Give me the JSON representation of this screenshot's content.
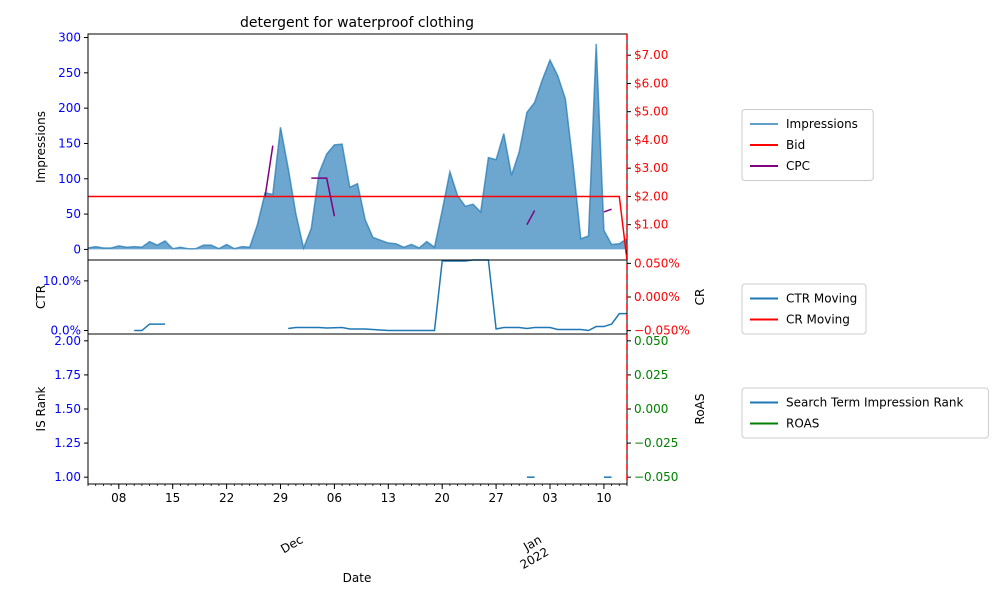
{
  "chart_data": {
    "type": "line",
    "title": "detergent for waterproof clothing",
    "xlabel": "Date",
    "x_start": "2021-11-04",
    "x_end": "2022-01-13",
    "x_ticks": [
      {
        "date": "2021-11-08",
        "label": "08"
      },
      {
        "date": "2021-11-15",
        "label": "15"
      },
      {
        "date": "2021-11-22",
        "label": "22"
      },
      {
        "date": "2021-11-29",
        "label": "29"
      },
      {
        "date": "2021-12-06",
        "label": "06"
      },
      {
        "date": "2021-12-13",
        "label": "13"
      },
      {
        "date": "2021-12-20",
        "label": "20"
      },
      {
        "date": "2021-12-27",
        "label": "27"
      },
      {
        "date": "2022-01-03",
        "label": "03"
      },
      {
        "date": "2022-01-10",
        "label": "10"
      }
    ],
    "x_month_labels": [
      {
        "date": "2021-12-01",
        "lines": [
          "Dec"
        ]
      },
      {
        "date": "2022-01-01",
        "lines": [
          "Jan",
          "2022"
        ]
      }
    ],
    "panels": [
      {
        "id": "impressions",
        "ylabel": "Impressions",
        "ylim": [
          -15,
          305
        ],
        "yticks": [
          0,
          50,
          100,
          150,
          200,
          250,
          300
        ],
        "ytick_labels": [
          "0",
          "50",
          "100",
          "150",
          "200",
          "250",
          "300"
        ],
        "right_ylim": [
          -0.25,
          7.75
        ],
        "right_yticks": [
          1,
          2,
          3,
          4,
          5,
          6,
          7
        ],
        "right_ytick_labels": [
          "$1.00",
          "$2.00",
          "$3.00",
          "$4.00",
          "$5.00",
          "$6.00",
          "$7.00"
        ],
        "legend": [
          "Impressions",
          "Bid",
          "CPC"
        ],
        "series": [
          {
            "name": "Impressions",
            "axis": "left",
            "style": "area",
            "color": "#1f77b4",
            "start": "2021-11-04",
            "values": [
              2,
              4,
              2,
              2,
              5,
              3,
              4,
              3,
              11,
              6,
              12,
              1,
              3,
              1,
              1,
              6,
              6,
              1,
              7,
              1,
              4,
              3,
              35,
              80,
              78,
              173,
              115,
              50,
              2,
              30,
              108,
              135,
              148,
              149,
              88,
              93,
              42,
              17,
              13,
              9,
              8,
              3,
              7,
              2,
              11,
              3,
              55,
              110,
              76,
              61,
              64,
              53,
              130,
              127,
              164,
              105,
              138,
              194,
              208,
              240,
              268,
              246,
              213,
              120,
              15,
              19,
              291,
              27,
              7,
              8,
              15
            ]
          },
          {
            "name": "Bid",
            "axis": "right",
            "color": "#ff0000",
            "points": [
              [
                "2021-11-04",
                2.0
              ],
              [
                "2022-01-12",
                2.0
              ],
              [
                "2022-01-13",
                -0.25
              ]
            ]
          },
          {
            "name": "CPC",
            "axis": "right",
            "color": "#800080",
            "segments": [
              [
                [
                  "2021-11-27",
                  2.0
                ],
                [
                  "2021-11-28",
                  3.8
                ]
              ],
              [
                [
                  "2021-12-03",
                  2.65
                ],
                [
                  "2021-12-05",
                  2.65
                ],
                [
                  "2021-12-06",
                  1.3
                ]
              ],
              [
                [
                  "2021-12-31",
                  1.0
                ],
                [
                  "2022-01-01",
                  1.5
                ]
              ],
              [
                [
                  "2022-01-10",
                  1.45
                ],
                [
                  "2022-01-11",
                  1.55
                ]
              ]
            ]
          }
        ]
      },
      {
        "id": "ctr",
        "ylabel": "CTR",
        "ylim": [
          -0.7,
          14.2
        ],
        "yticks": [
          0,
          10
        ],
        "ytick_labels": [
          "0.0%",
          "10.0%"
        ],
        "right_ylabel": "CR",
        "right_ylim": [
          -0.055,
          0.055
        ],
        "right_yticks": [
          -0.05,
          0.0,
          0.05
        ],
        "right_ytick_labels": [
          "−0.050%",
          "0.000%",
          "0.050%"
        ],
        "legend": [
          "CTR Moving",
          "CR Moving"
        ],
        "series": [
          {
            "name": "CTR Moving",
            "axis": "left",
            "color": "#1f77b4",
            "segments": [
              [
                [
                  "2021-11-10",
                  0.0
                ],
                [
                  "2021-11-11",
                  0.0
                ],
                [
                  "2021-11-12",
                  1.3
                ],
                [
                  "2021-11-14",
                  1.3
                ]
              ],
              [
                [
                  "2021-11-30",
                  0.4
                ],
                [
                  "2021-12-01",
                  0.6
                ],
                [
                  "2021-12-04",
                  0.6
                ],
                [
                  "2021-12-05",
                  0.5
                ],
                [
                  "2021-12-07",
                  0.6
                ],
                [
                  "2021-12-08",
                  0.3
                ],
                [
                  "2021-12-10",
                  0.3
                ],
                [
                  "2021-12-13",
                  0.0
                ],
                [
                  "2021-12-19",
                  0.0
                ],
                [
                  "2021-12-20",
                  14.0
                ],
                [
                  "2021-12-23",
                  14.0
                ],
                [
                  "2021-12-24",
                  14.2
                ],
                [
                  "2021-12-26",
                  14.2
                ],
                [
                  "2021-12-27",
                  0.3
                ],
                [
                  "2021-12-28",
                  0.6
                ],
                [
                  "2021-12-30",
                  0.6
                ],
                [
                  "2021-12-31",
                  0.4
                ],
                [
                  "2022-01-01",
                  0.6
                ],
                [
                  "2022-01-03",
                  0.6
                ],
                [
                  "2022-01-04",
                  0.2
                ],
                [
                  "2022-01-07",
                  0.2
                ],
                [
                  "2022-01-08",
                  0.0
                ],
                [
                  "2022-01-09",
                  0.8
                ],
                [
                  "2022-01-10",
                  0.8
                ],
                [
                  "2022-01-11",
                  1.3
                ],
                [
                  "2022-01-12",
                  3.4
                ],
                [
                  "2022-01-13",
                  3.4
                ]
              ]
            ]
          }
        ]
      },
      {
        "id": "isrank",
        "ylabel": "IS Rank",
        "ylim": [
          0.95,
          2.05
        ],
        "yticks": [
          1.0,
          1.25,
          1.5,
          1.75,
          2.0
        ],
        "ytick_labels": [
          "1.00",
          "1.25",
          "1.50",
          "1.75",
          "2.00"
        ],
        "right_ylabel": "RoAS",
        "right_ylim": [
          -0.055,
          0.055
        ],
        "right_yticks": [
          -0.05,
          -0.025,
          0.0,
          0.025,
          0.05
        ],
        "right_ytick_labels": [
          "−0.050",
          "−0.025",
          "0.000",
          "0.025",
          "0.050"
        ],
        "legend": [
          "Search Term Impression Rank",
          "ROAS"
        ],
        "series": [
          {
            "name": "Search Term Impression Rank",
            "axis": "left",
            "color": "#1f77b4",
            "segments": [
              [
                [
                  "2021-12-31",
                  1.0
                ],
                [
                  "2022-01-01",
                  1.0
                ]
              ],
              [
                [
                  "2022-01-10",
                  1.0
                ],
                [
                  "2022-01-11",
                  1.0
                ]
              ]
            ]
          }
        ]
      }
    ],
    "legend_colors": {
      "Impressions": "#1f77b4",
      "Bid": "#ff0000",
      "CPC": "#800080",
      "CTR Moving": "#1f77b4",
      "CR Moving": "#ff0000",
      "Search Term Impression Rank": "#1f77b4",
      "ROAS": "#008000"
    },
    "axis_colors": {
      "left_ticks": "#0000ff",
      "right_ticks_top": "#ff0000",
      "right_ticks_bottom": "#008000",
      "vline": "#ff0000"
    }
  }
}
